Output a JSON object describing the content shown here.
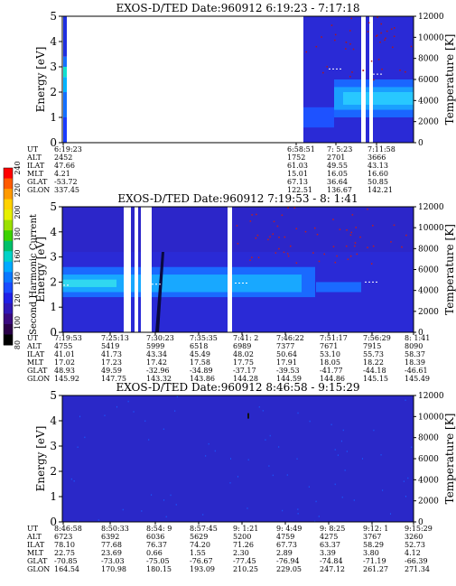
{
  "colorbar": {
    "label": "Second Harmonic Current",
    "ticks": [
      "240",
      "220",
      "200",
      "180",
      "160",
      "140",
      "120",
      "100",
      "80"
    ],
    "colors": [
      "#ff0000",
      "#ff5a00",
      "#ff9a00",
      "#ffd200",
      "#e6f000",
      "#9be000",
      "#3cd200",
      "#00c06a",
      "#00d2c8",
      "#00aaff",
      "#0a78ff",
      "#1a4cff",
      "#2020e6",
      "#3018b8",
      "#3a0a80",
      "#2a0048",
      "#000000"
    ]
  },
  "chart_data": [
    {
      "type": "heatmap",
      "title": "EXOS-D/TED",
      "date_text": "Date:960912",
      "time_range": "6:19:23 - 7:17:18",
      "ylabel": "Energy [eV]",
      "y2label": "Temperature [K]",
      "ylim": [
        0,
        5
      ],
      "y2lim": [
        0,
        12000
      ],
      "yticks": [
        "0",
        "1",
        "2",
        "3",
        "4",
        "5"
      ],
      "y2ticks": [
        "0",
        "2000",
        "4000",
        "6000",
        "8000",
        "10000",
        "12000"
      ],
      "grid": false,
      "table_labels": [
        "UT",
        "ALT",
        "ILAT",
        "MLT",
        "GLAT",
        "GLON"
      ],
      "columns": [
        {
          "UT": "6:19:23",
          "ALT": "2452",
          "ILAT": "47.66",
          "MLT": "4.21",
          "GLAT": "-53.72",
          "GLON": "337.45"
        },
        {
          "UT": "6:58:51",
          "ALT": "1752",
          "ILAT": "61.03",
          "MLT": "15.01",
          "GLAT": "67.13",
          "GLON": "122.51"
        },
        {
          "UT": "7: 5:23",
          "ALT": "2701",
          "ILAT": "49.55",
          "MLT": "16.05",
          "GLAT": "36.64",
          "GLON": "136.67"
        },
        {
          "UT": "7:11:58",
          "ALT": "3666",
          "ILAT": "43.13",
          "MLT": "16.60",
          "GLAT": "50.85",
          "GLON": "142.21"
        }
      ],
      "temperature_trace_K": [
        {
          "UT": "7: 5:23",
          "value": 7000
        },
        {
          "UT": "7:11:58",
          "value": 6500
        }
      ]
    },
    {
      "type": "heatmap",
      "title": "EXOS-D/TED",
      "date_text": "Date:960912",
      "time_range": "7:19:53 - 8: 1:41",
      "ylabel": "Energy [eV]",
      "y2label": "Temperature [K]",
      "ylim": [
        0,
        5
      ],
      "y2lim": [
        0,
        12000
      ],
      "yticks": [
        "0",
        "1",
        "2",
        "3",
        "4",
        "5"
      ],
      "y2ticks": [
        "0",
        "2000",
        "4000",
        "6000",
        "8000",
        "10000",
        "12000"
      ],
      "grid": false,
      "table_labels": [
        "UT",
        "ALT",
        "ILAT",
        "MLT",
        "GLAT",
        "GLON"
      ],
      "columns": [
        {
          "UT": "7:19:53",
          "ALT": "4755",
          "ILAT": "41.01",
          "MLT": "17.02",
          "GLAT": "48.93",
          "GLON": "145.92"
        },
        {
          "UT": "7:25:13",
          "ALT": "5419",
          "ILAT": "41.73",
          "MLT": "17.23",
          "GLAT": "49.59",
          "GLON": "147.75"
        },
        {
          "UT": "7:30:23",
          "ALT": "5999",
          "ILAT": "43.34",
          "MLT": "17.42",
          "GLAT": "-32.96",
          "GLON": "143.32"
        },
        {
          "UT": "7:35:35",
          "ALT": "6518",
          "ILAT": "45.49",
          "MLT": "17.58",
          "GLAT": "-34.89",
          "GLON": "143.86"
        },
        {
          "UT": "7:41: 2",
          "ALT": "6989",
          "ILAT": "48.02",
          "MLT": "17.75",
          "GLAT": "-37.17",
          "GLON": "144.28"
        },
        {
          "UT": "7:46:22",
          "ALT": "7377",
          "ILAT": "50.64",
          "MLT": "17.91",
          "GLAT": "-39.53",
          "GLON": "144.59"
        },
        {
          "UT": "7:51:17",
          "ALT": "7671",
          "ILAT": "53.10",
          "MLT": "18.05",
          "GLAT": "-41.77",
          "GLON": "144.86"
        },
        {
          "UT": "7:56:29",
          "ALT": "7915",
          "ILAT": "55.73",
          "MLT": "18.22",
          "GLAT": "-44.18",
          "GLON": "145.15"
        },
        {
          "UT": "8: 1:41",
          "ALT": "8090",
          "ILAT": "58.37",
          "MLT": "18.39",
          "GLAT": "-46.61",
          "GLON": "145.49"
        }
      ],
      "temperature_trace_K": [
        {
          "UT": "7:19:53",
          "value": 4500
        },
        {
          "UT": "7:30:23",
          "value": 4600
        },
        {
          "UT": "7:41: 2",
          "value": 4700
        },
        {
          "UT": "7:56:29",
          "value": 4800
        }
      ]
    },
    {
      "type": "heatmap",
      "title": "EXOS-D/TED",
      "date_text": "Date:960912",
      "time_range": "8:46:58 - 9:15:29",
      "ylabel": "Energy [eV]",
      "y2label": "Temperature [K]",
      "ylim": [
        0,
        5
      ],
      "y2lim": [
        0,
        12000
      ],
      "yticks": [
        "0",
        "1",
        "2",
        "3",
        "4",
        "5"
      ],
      "y2ticks": [
        "0",
        "2000",
        "4000",
        "6000",
        "8000",
        "10000",
        "12000"
      ],
      "grid": false,
      "table_labels": [
        "UT",
        "ALT",
        "ILAT",
        "MLT",
        "GLAT",
        "GLON"
      ],
      "columns": [
        {
          "UT": "8:46:58",
          "ALT": "6723",
          "ILAT": "78.10",
          "MLT": "22.75",
          "GLAT": "-70.85",
          "GLON": "164.54"
        },
        {
          "UT": "8:50:33",
          "ALT": "6392",
          "ILAT": "77.68",
          "MLT": "23.69",
          "GLAT": "-73.03",
          "GLON": "170.98"
        },
        {
          "UT": "8:54: 9",
          "ALT": "6036",
          "ILAT": "76.37",
          "MLT": "0.66",
          "GLAT": "-75.05",
          "GLON": "180.15"
        },
        {
          "UT": "8:57:45",
          "ALT": "5629",
          "ILAT": "74.20",
          "MLT": "1.55",
          "GLAT": "-76.67",
          "GLON": "193.09"
        },
        {
          "UT": "9: 1:21",
          "ALT": "5200",
          "ILAT": "71.26",
          "MLT": "2.30",
          "GLAT": "-77.45",
          "GLON": "210.25"
        },
        {
          "UT": "9: 4:49",
          "ALT": "4759",
          "ILAT": "67.73",
          "MLT": "2.89",
          "GLAT": "-76.94",
          "GLON": "229.05"
        },
        {
          "UT": "9: 8:25",
          "ALT": "4275",
          "ILAT": "63.37",
          "MLT": "3.39",
          "GLAT": "-74.84",
          "GLON": "247.12"
        },
        {
          "UT": "9:12: 1",
          "ALT": "3767",
          "ILAT": "58.29",
          "MLT": "3.80",
          "GLAT": "-71.19",
          "GLON": "261.27"
        },
        {
          "UT": "9:15:29",
          "ALT": "3260",
          "ILAT": "52.73",
          "MLT": "4.12",
          "GLAT": "-66.39",
          "GLON": "271.34"
        }
      ],
      "temperature_trace_K": []
    }
  ]
}
